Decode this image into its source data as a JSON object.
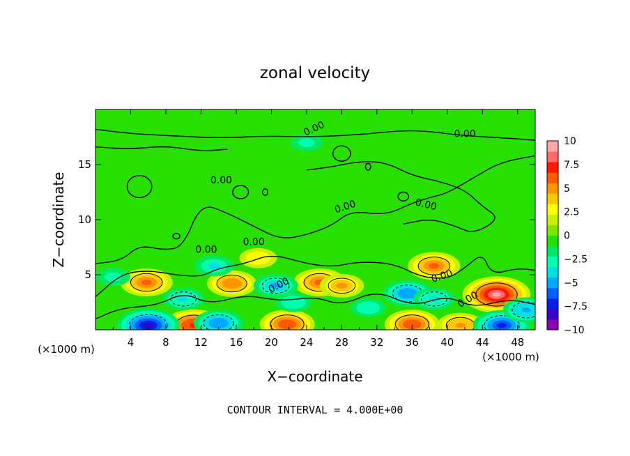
{
  "chart_data": {
    "type": "heatmap",
    "title": "zonal velocity",
    "xlabel": "X−coordinate",
    "ylabel": "Z−coordinate",
    "x_unit_left": "(×1000 m)",
    "x_unit_right": "(×1000 m)",
    "xlim": [
      0,
      50
    ],
    "ylim": [
      0,
      20
    ],
    "x_ticks": [
      4,
      8,
      12,
      16,
      20,
      24,
      28,
      32,
      36,
      40,
      44,
      48
    ],
    "y_ticks": [
      5,
      10,
      15
    ],
    "footer": "CONTOUR INTERVAL = 4.000E+00",
    "contour_labels": [
      "0.00",
      "0.00",
      "0.00",
      "0.00",
      "0.00",
      "0.00",
      "0.00",
      "0.00",
      "0.00",
      "0.00"
    ],
    "colorbar": {
      "range": [
        -10,
        10
      ],
      "ticks": [
        "10",
        "7.5",
        "5",
        "2.5",
        "0",
        "−2.5",
        "−5",
        "−7.5",
        "−10"
      ],
      "colors": [
        "#8a00b0",
        "#3a00c8",
        "#0020e6",
        "#0060ff",
        "#00a8ff",
        "#00e0e0",
        "#00ffb0",
        "#00e860",
        "#22e000",
        "#7be800",
        "#c8f000",
        "#ffff00",
        "#ffc800",
        "#ff9600",
        "#ff5a00",
        "#ff1a00",
        "#ff6a6a",
        "#ffa8a8"
      ]
    },
    "blobs": [
      {
        "x": 5.8,
        "z": 4.3,
        "v": 6
      },
      {
        "x": 11.2,
        "z": 0.4,
        "v": 7.5
      },
      {
        "x": 15.5,
        "z": 4.2,
        "v": 5.5
      },
      {
        "x": 21.8,
        "z": 0.5,
        "v": 6.5
      },
      {
        "x": 25.5,
        "z": 4.3,
        "v": 6
      },
      {
        "x": 28.0,
        "z": 4.0,
        "v": 4.5
      },
      {
        "x": 36.0,
        "z": 0.5,
        "v": 6.5
      },
      {
        "x": 38.5,
        "z": 5.8,
        "v": 6
      },
      {
        "x": 41.5,
        "z": 0.4,
        "v": 5
      },
      {
        "x": 45.6,
        "z": 3.2,
        "v": 9
      },
      {
        "x": 18.5,
        "z": 6.5,
        "v": 3.2
      },
      {
        "x": 6.0,
        "z": 0.4,
        "v": -8
      },
      {
        "x": 14.0,
        "z": 0.6,
        "v": -5.5
      },
      {
        "x": 10.0,
        "z": 2.8,
        "v": -4
      },
      {
        "x": 20.5,
        "z": 4.0,
        "v": -4.5
      },
      {
        "x": 22.5,
        "z": 2.5,
        "v": -3
      },
      {
        "x": 35.5,
        "z": 3.3,
        "v": -5.5
      },
      {
        "x": 38.5,
        "z": 2.8,
        "v": -4
      },
      {
        "x": 46.2,
        "z": 0.4,
        "v": -7
      },
      {
        "x": 49.0,
        "z": 1.8,
        "v": -5
      },
      {
        "x": 31.0,
        "z": 2.0,
        "v": -2.8
      },
      {
        "x": 2.0,
        "z": 4.8,
        "v": -2.6
      },
      {
        "x": 24.0,
        "z": 17.0,
        "v": -2.3
      },
      {
        "x": 13.5,
        "z": 5.8,
        "v": -3.5
      }
    ]
  }
}
